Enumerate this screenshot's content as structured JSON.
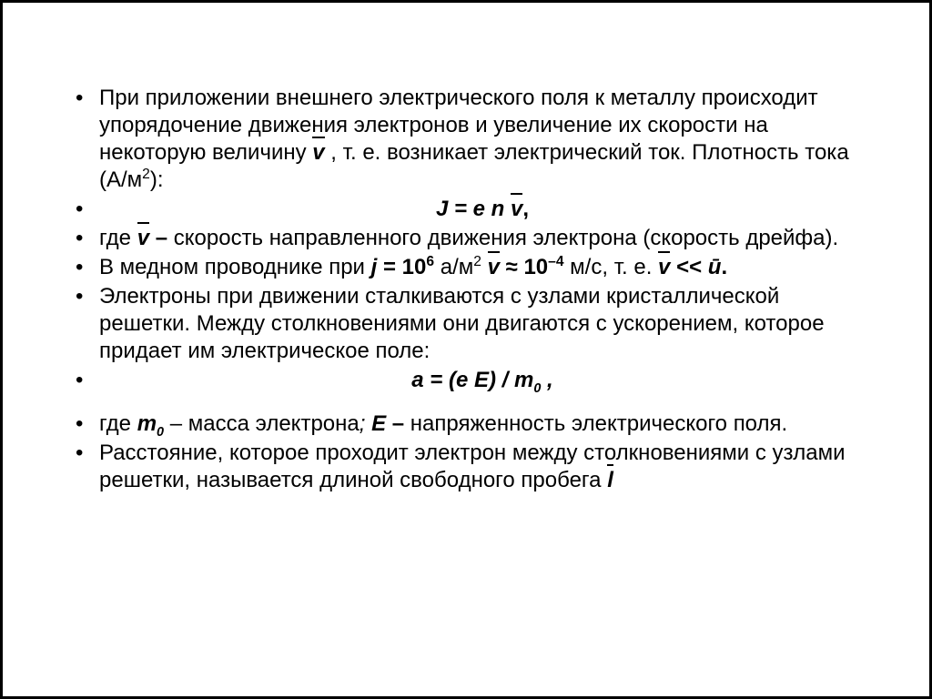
{
  "slide": {
    "background": "#ffffff",
    "border_color": "#000000",
    "border_width": 3,
    "text_color": "#000000",
    "font_family": "Arial",
    "font_size_pt": 18,
    "bullets": [
      {
        "type": "paragraph",
        "runs": [
          {
            "text": "При приложении внешнего электрического поля к металлу происходит упорядочение движения электронов и увеличение их скорости на некоторую величину "
          },
          {
            "text": "v",
            "bold": true,
            "italic": true,
            "overbar": true
          },
          {
            "text": " , т. е. возникает электрический ток. Плотность тока (А/м"
          },
          {
            "text": "2",
            "sup": true
          },
          {
            "text": "):"
          }
        ]
      },
      {
        "type": "center",
        "runs": [
          {
            "text": "J = e n ",
            "bold": true,
            "italic": true
          },
          {
            "text": "v",
            "bold": true,
            "italic": true,
            "overbar": true
          },
          {
            "text": ",",
            "bold": true
          }
        ]
      },
      {
        "type": "paragraph",
        "runs": [
          {
            "text": "где "
          },
          {
            "text": "v",
            "bold": true,
            "italic": true,
            "overbar": true
          },
          {
            "text": " – ",
            "bold": true
          },
          {
            "text": "скорость направленного движения электрона (скорость дрейфа)."
          }
        ]
      },
      {
        "type": "paragraph",
        "runs": [
          {
            "text": "В медном проводнике при "
          },
          {
            "text": "j",
            "bold": true,
            "italic": true
          },
          {
            "text": " = 10",
            "bold": true
          },
          {
            "text": "6",
            "bold": true,
            "sup": true
          },
          {
            "text": " а/м"
          },
          {
            "text": "2",
            "sup": true
          },
          {
            "text": "   "
          },
          {
            "text": "v",
            "bold": true,
            "italic": true,
            "overbar": true
          },
          {
            "text": " ≈ 10",
            "bold": true
          },
          {
            "text": "–4",
            "bold": true,
            "sup": true
          },
          {
            "text": " м/с, т. е. "
          },
          {
            "text": "v",
            "bold": true,
            "italic": true,
            "overbar": true
          },
          {
            "text": " << ",
            "bold": true
          },
          {
            "text": "ū",
            "bold": true,
            "italic": true
          },
          {
            "text": ".",
            "bold": true
          }
        ]
      },
      {
        "type": "paragraph",
        "runs": [
          {
            "text": "Электроны при движении сталкиваются с узлами кристаллической решетки. Между столкновениями они двигаются с ускорением, которое придает им электрическое поле:"
          }
        ]
      },
      {
        "type": "center",
        "runs": [
          {
            "text": "a = (e E) / m",
            "bold": true,
            "italic": true
          },
          {
            "text": "0",
            "bold": true,
            "italic": true,
            "sub": true
          },
          {
            "text": " ,",
            "bold": true,
            "italic": true
          }
        ]
      },
      {
        "type": "gap"
      },
      {
        "type": "paragraph",
        "runs": [
          {
            "text": "где "
          },
          {
            "text": "m",
            "bold": true,
            "italic": true
          },
          {
            "text": "0",
            "bold": true,
            "italic": true,
            "sub": true
          },
          {
            "text": " – масса электрона"
          },
          {
            "text": "; ",
            "italic": true
          },
          {
            "text": "E",
            "bold": true,
            "italic": true
          },
          {
            "text": " – ",
            "bold": true
          },
          {
            "text": "напряженность электрического поля."
          }
        ]
      },
      {
        "type": "paragraph",
        "runs": [
          {
            "text": "Расстояние, которое проходит электрон между столкновениями с узлами решетки, называется длиной свободного пробега "
          },
          {
            "text": "l",
            "bold": true,
            "italic": true,
            "overbar": true
          }
        ]
      }
    ]
  }
}
